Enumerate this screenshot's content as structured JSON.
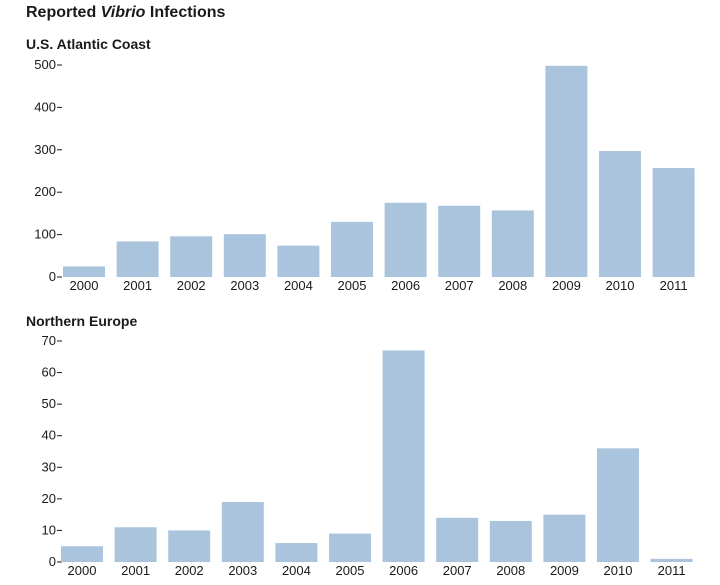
{
  "title": {
    "prefix": "Reported ",
    "italic": "Vibrio",
    "suffix": " Infections"
  },
  "colors": {
    "bar": "#abc4dd",
    "text": "#1a1a1a"
  },
  "chart_data": [
    {
      "type": "bar",
      "title": "U.S. Atlantic Coast",
      "categories": [
        "2000",
        "2001",
        "2002",
        "2003",
        "2004",
        "2005",
        "2006",
        "2007",
        "2008",
        "2009",
        "2010",
        "2011"
      ],
      "values": [
        25,
        84,
        96,
        101,
        74,
        130,
        175,
        168,
        157,
        498,
        297,
        257
      ],
      "ylim": [
        0,
        500
      ],
      "yticks": [
        0,
        100,
        200,
        300,
        400,
        500
      ],
      "xlabel": "",
      "ylabel": "",
      "grid": false
    },
    {
      "type": "bar",
      "title": "Northern Europe",
      "categories": [
        "2000",
        "2001",
        "2002",
        "2003",
        "2004",
        "2005",
        "2006",
        "2007",
        "2008",
        "2009",
        "2010",
        "2011"
      ],
      "values": [
        5,
        11,
        10,
        19,
        6,
        9,
        67,
        14,
        13,
        15,
        36,
        1
      ],
      "ylim": [
        0,
        70
      ],
      "yticks": [
        0,
        10,
        20,
        30,
        40,
        50,
        60,
        70
      ],
      "xlabel": "",
      "ylabel": "",
      "grid": false
    }
  ]
}
